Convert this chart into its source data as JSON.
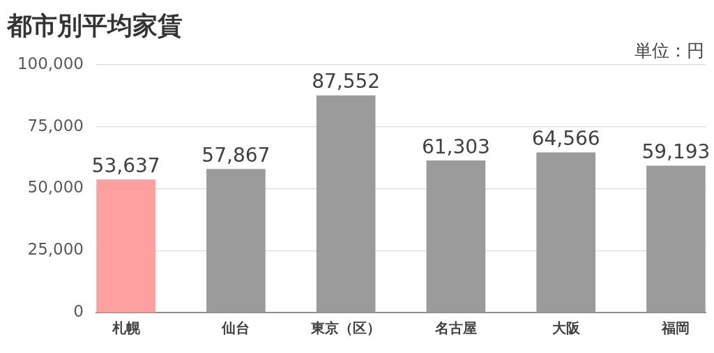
{
  "chart_data": {
    "type": "bar",
    "title": "都市別平均家賃",
    "annotations": [
      "単位：円"
    ],
    "categories": [
      "札幌",
      "仙台",
      "東京（区）",
      "名古屋",
      "大阪",
      "福岡"
    ],
    "values": [
      53637,
      57867,
      87552,
      61303,
      64566,
      59193
    ],
    "value_labels": [
      "53,637",
      "57,867",
      "87,552",
      "61,303",
      "64,566",
      "59,193"
    ],
    "colors": [
      "#ff9f9f",
      "#9b9b9b",
      "#9b9b9b",
      "#9b9b9b",
      "#9b9b9b",
      "#9b9b9b"
    ],
    "ylim": [
      0,
      100000
    ],
    "yticks": [
      0,
      {
        "value": 25000,
        "label": "25,000"
      },
      {
        "value": 50000,
        "label": "50,000"
      },
      {
        "value": 75000,
        "label": "75,000"
      },
      {
        "value": 100000,
        "label": "100,000"
      }
    ],
    "grid": "y"
  }
}
